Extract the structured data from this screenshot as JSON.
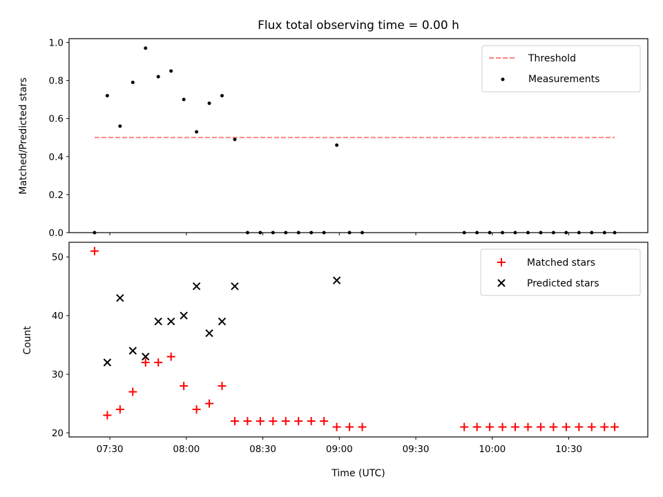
{
  "chart_data": [
    {
      "type": "scatter",
      "title": "Flux total observing time = 0.00 h",
      "xlabel": "",
      "ylabel": "Matched/Predicted stars",
      "ylim": [
        0,
        1.02
      ],
      "yticks": [
        "0.0",
        "0.2",
        "0.4",
        "0.6",
        "0.8",
        "1.0"
      ],
      "legend": {
        "position": "top-right",
        "entries": [
          "Threshold",
          "Measurements"
        ]
      },
      "threshold": {
        "name": "Threshold",
        "value": 0.5,
        "x_range": [
          "07:24",
          "10:48"
        ],
        "color": "#ff8080"
      },
      "series": [
        {
          "name": "Measurements",
          "color": "#000000",
          "x": [
            "07:24",
            "07:29",
            "07:34",
            "07:39",
            "07:44",
            "07:49",
            "07:54",
            "07:59",
            "08:04",
            "08:09",
            "08:14",
            "08:19",
            "08:24",
            "08:29",
            "08:34",
            "08:39",
            "08:44",
            "08:49",
            "08:54",
            "08:59",
            "09:04",
            "09:09",
            "09:49",
            "09:54",
            "09:59",
            "10:04",
            "10:09",
            "10:14",
            "10:19",
            "10:24",
            "10:29",
            "10:34",
            "10:39",
            "10:44",
            "10:48"
          ],
          "y": [
            0.0,
            0.72,
            0.56,
            0.79,
            0.97,
            0.82,
            0.85,
            0.7,
            0.53,
            0.68,
            0.72,
            0.49,
            0.0,
            0.0,
            0.0,
            0.0,
            0.0,
            0.0,
            0.0,
            0.46,
            0.0,
            0.0,
            0.0,
            0.0,
            0.0,
            0.0,
            0.0,
            0.0,
            0.0,
            0.0,
            0.0,
            0.0,
            0.0,
            0.0,
            0.0
          ]
        }
      ]
    },
    {
      "type": "scatter",
      "title": "",
      "xlabel": "Time (UTC)",
      "ylabel": "Count",
      "ylim": [
        19.3,
        52.5
      ],
      "yticks": [
        "20",
        "30",
        "40",
        "50"
      ],
      "xlim": [
        "07:14",
        "11:01"
      ],
      "xticks": [
        "07:30",
        "08:00",
        "08:30",
        "09:00",
        "09:30",
        "10:00",
        "10:30"
      ],
      "legend": {
        "position": "top-right",
        "entries": [
          "Matched stars",
          "Predicted stars"
        ]
      },
      "series": [
        {
          "name": "Matched stars",
          "marker": "plus",
          "color": "#ff0000",
          "x": [
            "07:24",
            "07:29",
            "07:34",
            "07:39",
            "07:44",
            "07:49",
            "07:54",
            "07:59",
            "08:04",
            "08:09",
            "08:14",
            "08:19",
            "08:24",
            "08:29",
            "08:34",
            "08:39",
            "08:44",
            "08:49",
            "08:54",
            "08:59",
            "09:04",
            "09:09",
            "09:49",
            "09:54",
            "09:59",
            "10:04",
            "10:09",
            "10:14",
            "10:19",
            "10:24",
            "10:29",
            "10:34",
            "10:39",
            "10:44",
            "10:48"
          ],
          "y": [
            51,
            23,
            24,
            27,
            32,
            32,
            33,
            28,
            24,
            25,
            28,
            22,
            22,
            22,
            22,
            22,
            22,
            22,
            22,
            21,
            21,
            21,
            21,
            21,
            21,
            21,
            21,
            21,
            21,
            21,
            21,
            21,
            21,
            21,
            21
          ]
        },
        {
          "name": "Predicted stars",
          "marker": "x",
          "color": "#000000",
          "x": [
            "07:29",
            "07:34",
            "07:39",
            "07:44",
            "07:49",
            "07:54",
            "07:59",
            "08:04",
            "08:09",
            "08:14",
            "08:19",
            "08:59"
          ],
          "y": [
            32,
            43,
            34,
            33,
            39,
            39,
            40,
            45,
            37,
            39,
            45,
            46
          ]
        }
      ]
    }
  ]
}
